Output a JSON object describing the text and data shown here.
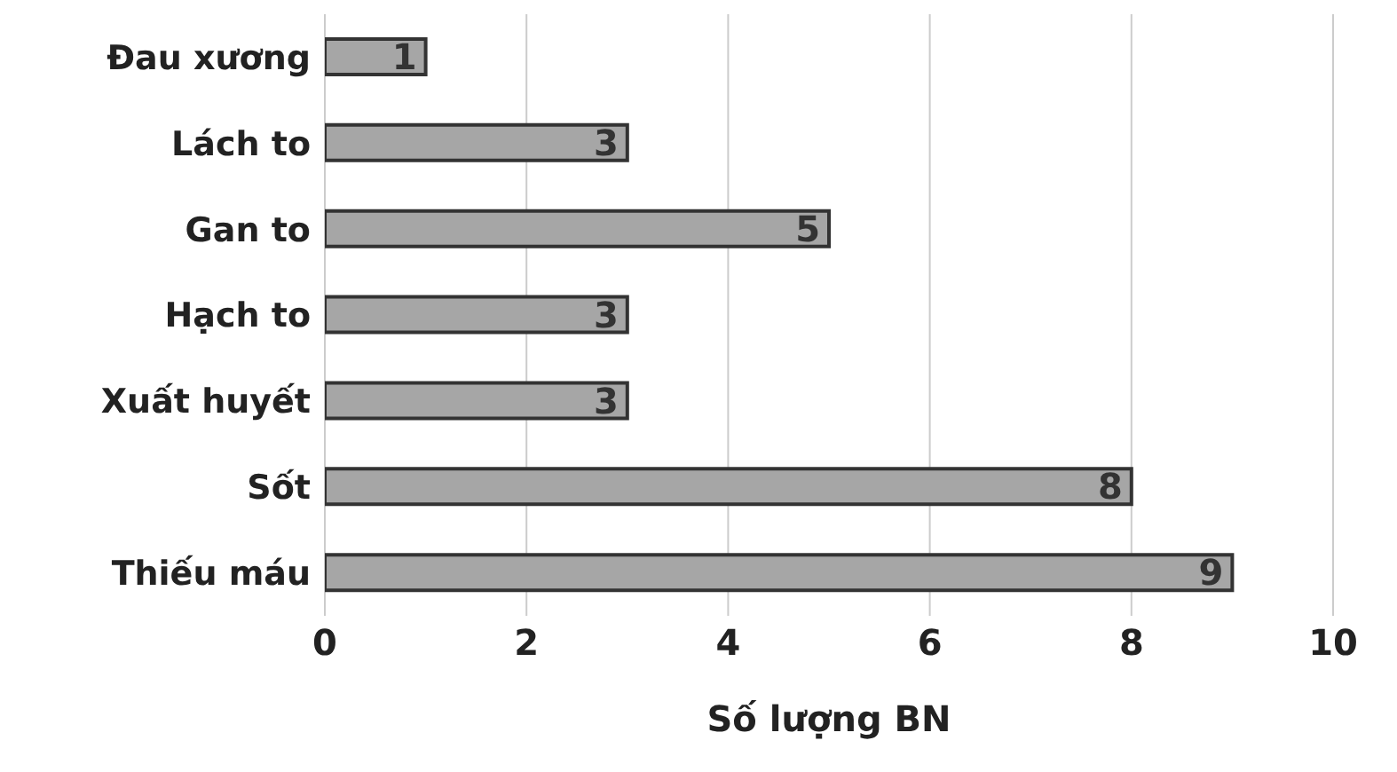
{
  "chart_data": {
    "type": "bar",
    "orientation": "horizontal",
    "xlabel": "Số lượng BN",
    "categories": [
      "Đau xương",
      "Lách to",
      "Gan to",
      "Hạch to",
      "Xuất huyết",
      "Sốt",
      "Thiếu máu"
    ],
    "values": [
      1,
      3,
      5,
      3,
      3,
      8,
      9
    ],
    "color": "#a6a6a6",
    "xlim": [
      0,
      10
    ],
    "xticks": [
      0,
      2,
      4,
      6,
      8,
      10
    ],
    "grid": "x",
    "data_labels": true
  }
}
